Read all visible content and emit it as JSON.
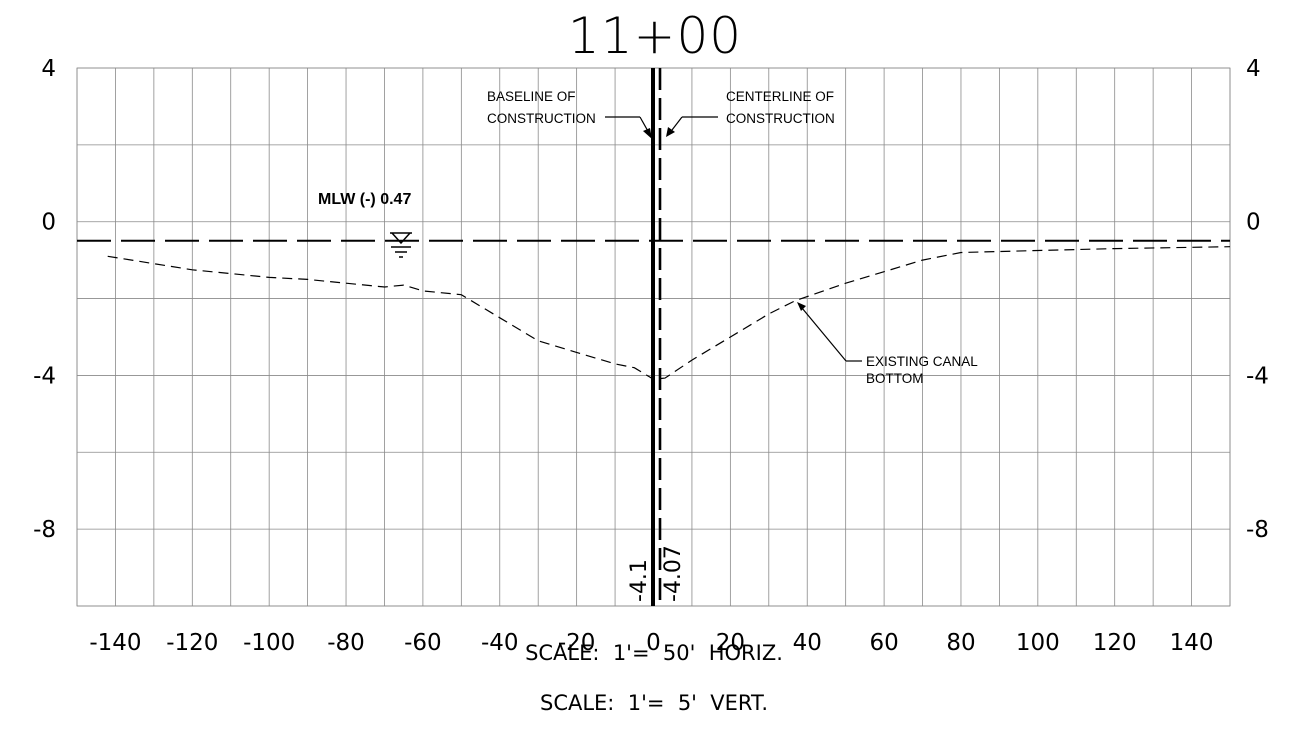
{
  "title": "11+00",
  "axes": {
    "x_ticks": [
      "-140",
      "-120",
      "-100",
      "-80",
      "-60",
      "-40",
      "-20",
      "0",
      "20",
      "40",
      "60",
      "80",
      "100",
      "120",
      "140"
    ],
    "y_ticks": [
      "4",
      "0",
      "-4",
      "-8"
    ],
    "xlim": [
      -150,
      150
    ],
    "ylim": [
      -10,
      4
    ],
    "grid": true
  },
  "annotations": {
    "baseline_line1": "BASELINE OF",
    "baseline_line2": "CONSTRUCTION",
    "centerline_line1": "CENTERLINE OF",
    "centerline_line2": "CONSTRUCTION",
    "mlw": "MLW (-) 0.47",
    "canal_line1": "EXISTING CANAL",
    "canal_line2": "BOTTOM",
    "baseline_elev": "-4.1",
    "centerline_elev": "-4.07"
  },
  "scale": {
    "horizontal": "SCALE:  1'=  50'  HORIZ.",
    "vertical": "SCALE:  1'=  5'  VERT."
  },
  "chart_data": {
    "type": "line",
    "title": "11+00",
    "x_ticks": [
      -140,
      -120,
      -100,
      -80,
      -60,
      -40,
      -20,
      0,
      20,
      40,
      60,
      80,
      100,
      120,
      140
    ],
    "y_ticks": [
      4,
      0,
      -4,
      -8
    ],
    "xlim": [
      -150,
      150
    ],
    "ylim": [
      -10,
      4
    ],
    "grid": true,
    "mlw_elevation": -0.47,
    "baseline_station": 0,
    "centerline_station": 3,
    "series": [
      {
        "name": "EXISTING CANAL BOTTOM",
        "points": [
          [
            -142,
            -0.9
          ],
          [
            -120,
            -1.25
          ],
          [
            -100,
            -1.45
          ],
          [
            -90,
            -1.5
          ],
          [
            -80,
            -1.6
          ],
          [
            -70,
            -1.7
          ],
          [
            -65,
            -1.65
          ],
          [
            -60,
            -1.8
          ],
          [
            -50,
            -1.9
          ],
          [
            -40,
            -2.5
          ],
          [
            -30,
            -3.1
          ],
          [
            -20,
            -3.4
          ],
          [
            -10,
            -3.7
          ],
          [
            -5,
            -3.8
          ],
          [
            0,
            -4.1
          ],
          [
            3,
            -4.07
          ],
          [
            10,
            -3.6
          ],
          [
            20,
            -3.0
          ],
          [
            30,
            -2.4
          ],
          [
            37,
            -2.05
          ],
          [
            50,
            -1.6
          ],
          [
            60,
            -1.3
          ],
          [
            70,
            -1.0
          ],
          [
            80,
            -0.8
          ],
          [
            100,
            -0.75
          ],
          [
            120,
            -0.7
          ],
          [
            150,
            -0.65
          ]
        ]
      }
    ]
  }
}
